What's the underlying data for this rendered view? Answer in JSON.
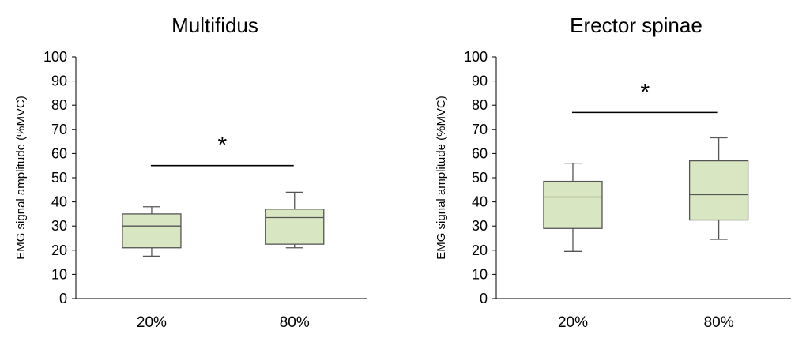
{
  "chart_data": [
    {
      "type": "box",
      "title": "Multifidus",
      "ylabel": "EMG signal amplitude (%MVC)",
      "xlabel": "",
      "ylim": [
        0,
        100
      ],
      "yticks": [
        "0",
        "10",
        "20",
        "30",
        "40",
        "50",
        "60",
        "70",
        "80",
        "90",
        "100"
      ],
      "categories": [
        "20%",
        "80%"
      ],
      "boxes": [
        {
          "category": "20%",
          "min": 17.5,
          "q1": 21,
          "median": 30,
          "q3": 35,
          "max": 38
        },
        {
          "category": "80%",
          "min": 21,
          "q1": 22.5,
          "median": 33.5,
          "q3": 37,
          "max": 44
        }
      ],
      "significance": {
        "label": "*",
        "y": 55
      },
      "colors": {
        "box_fill": "#d9e6c2",
        "box_stroke": "#555555"
      }
    },
    {
      "type": "box",
      "title": "Erector spinae",
      "ylabel": "EMG signal amplitude (%MVC)",
      "xlabel": "",
      "ylim": [
        0,
        100
      ],
      "yticks": [
        "0",
        "10",
        "20",
        "30",
        "40",
        "50",
        "60",
        "70",
        "80",
        "90",
        "100"
      ],
      "categories": [
        "20%",
        "80%"
      ],
      "boxes": [
        {
          "category": "20%",
          "min": 19.5,
          "q1": 29,
          "median": 42,
          "q3": 48.5,
          "max": 56
        },
        {
          "category": "80%",
          "min": 24.5,
          "q1": 32.5,
          "median": 43,
          "q3": 57,
          "max": 66.5
        }
      ],
      "significance": {
        "label": "*",
        "y": 77
      },
      "colors": {
        "box_fill": "#d9e6c2",
        "box_stroke": "#555555"
      }
    }
  ]
}
